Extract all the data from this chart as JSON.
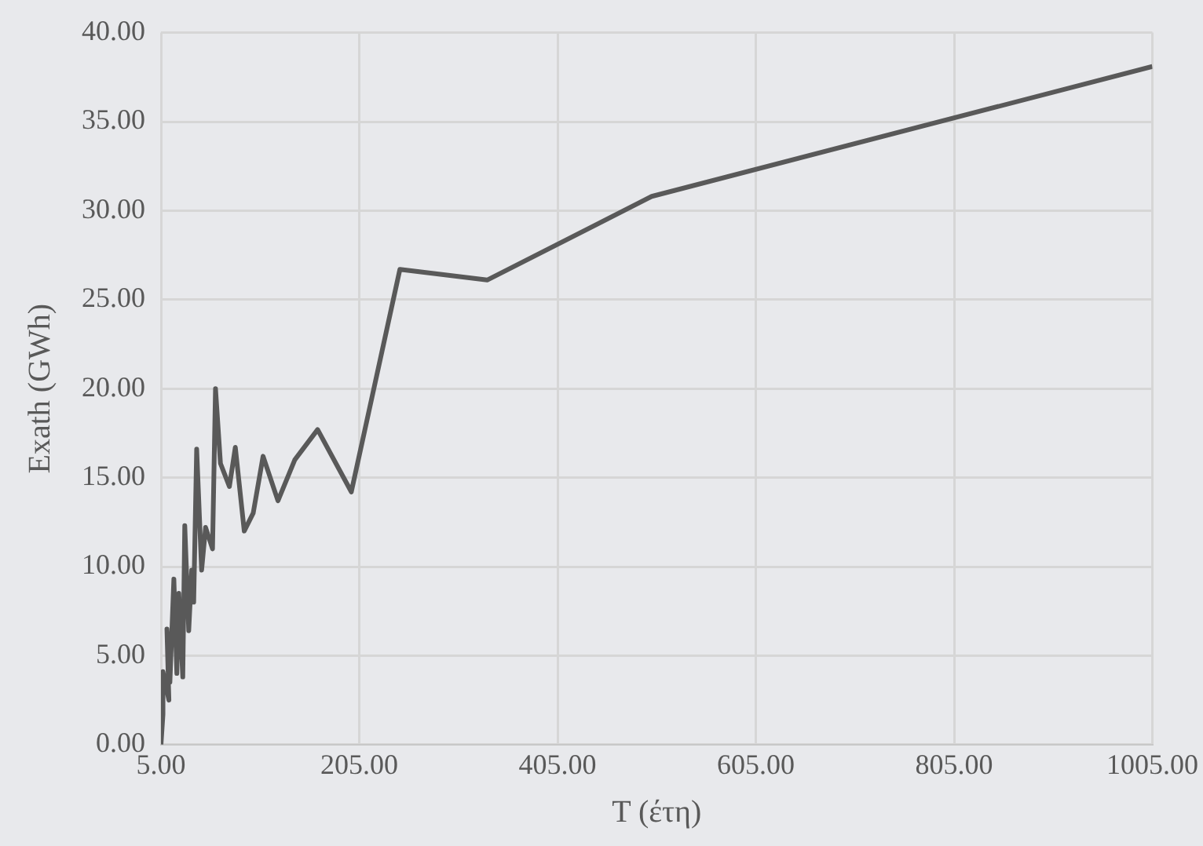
{
  "chart_data": {
    "type": "line",
    "xlabel": "T (έτη)",
    "ylabel": "Exath (GWh)",
    "series": [
      {
        "color": "#595959",
        "x": [
          5,
          7,
          7,
          13,
          11,
          14,
          18,
          21,
          23,
          27,
          29,
          33,
          36,
          38,
          41,
          46,
          50,
          57,
          60,
          65,
          74,
          80,
          89,
          98,
          108,
          123,
          140,
          163,
          197,
          246,
          334,
          500,
          1005
        ],
        "values": [
          0,
          1.7,
          4.1,
          2.5,
          6.5,
          3.5,
          9.3,
          4,
          8.5,
          3.8,
          12.3,
          6.4,
          9.8,
          8,
          16.6,
          9.8,
          12.2,
          11,
          20,
          15.8,
          14.5,
          16.7,
          12,
          13,
          16.2,
          13.7,
          16,
          17.7,
          14.2,
          26.7,
          26.1,
          30.8,
          38.1
        ]
      }
    ],
    "xlim": [
      5,
      1005
    ],
    "ylim": [
      0,
      40
    ],
    "xticks": [
      {
        "value": 5,
        "label": "5.00"
      },
      {
        "value": 205,
        "label": "205.00"
      },
      {
        "value": 405,
        "label": "405.00"
      },
      {
        "value": 605,
        "label": "605.00"
      },
      {
        "value": 805,
        "label": "805.00"
      },
      {
        "value": 1005,
        "label": "1005.00"
      }
    ],
    "yticks": [
      {
        "value": 0,
        "label": "0.00"
      },
      {
        "value": 5,
        "label": "5.00"
      },
      {
        "value": 10,
        "label": "10.00"
      },
      {
        "value": 15,
        "label": "15.00"
      },
      {
        "value": 20,
        "label": "20.00"
      },
      {
        "value": 25,
        "label": "25.00"
      },
      {
        "value": 30,
        "label": "30.00"
      },
      {
        "value": 35,
        "label": "35.00"
      },
      {
        "value": 40,
        "label": "40.00"
      }
    ],
    "grid": true,
    "legend": false,
    "marker": "none",
    "line_style": "solid"
  }
}
